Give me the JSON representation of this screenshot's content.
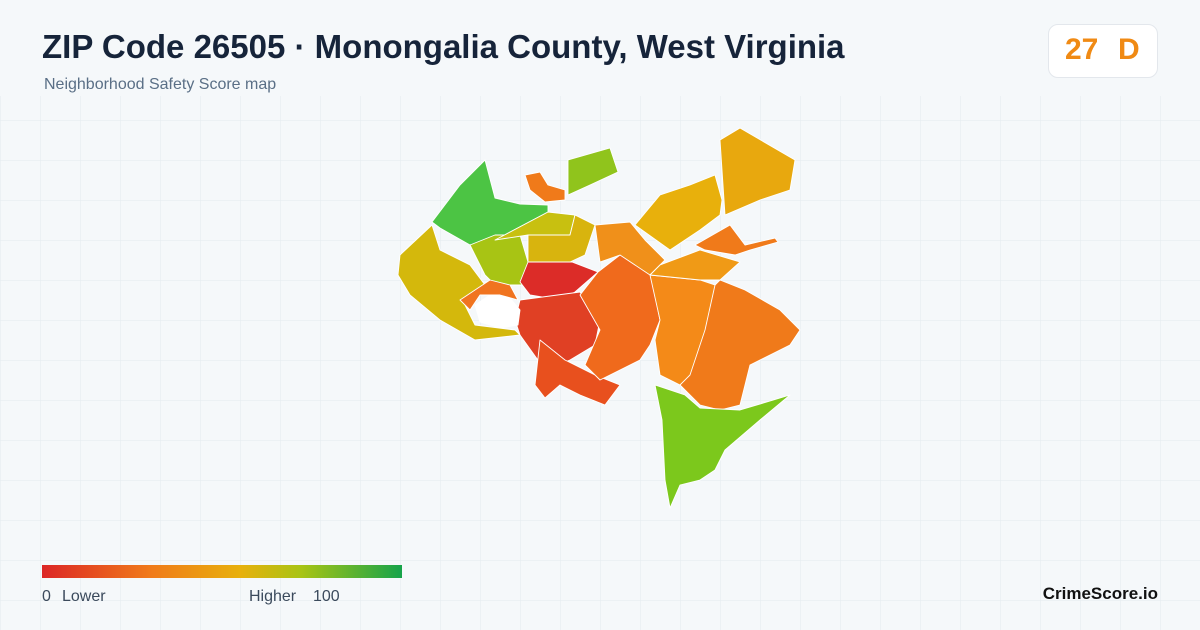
{
  "header": {
    "title": "ZIP Code 26505 · Monongalia County, West Virginia",
    "subtitle": "Neighborhood Safety Score map"
  },
  "score": {
    "value": 27,
    "grade": "D"
  },
  "legend": {
    "min": 0,
    "min_label": "Lower",
    "max_label": "Higher",
    "max": 100
  },
  "brand": "CrimeScore.io"
}
